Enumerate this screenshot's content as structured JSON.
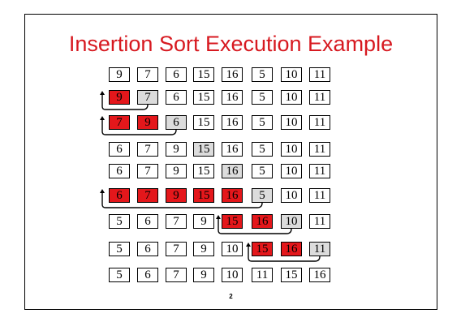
{
  "slide": {
    "title": "Insertion Sort Execution Example",
    "page_number": "2"
  },
  "colors": {
    "title": "#d71920",
    "sorted": "#e4171b",
    "key": "#dcdcdc"
  },
  "rows": [
    {
      "values": [
        9,
        7,
        6,
        15,
        16,
        5,
        10,
        11
      ],
      "sorted_cells": [],
      "key_cell": null,
      "insert_at": null
    },
    {
      "values": [
        9,
        7,
        6,
        15,
        16,
        5,
        10,
        11
      ],
      "sorted_cells": [
        0
      ],
      "key_cell": 1,
      "insert_at": 0
    },
    {
      "values": [
        7,
        9,
        6,
        15,
        16,
        5,
        10,
        11
      ],
      "sorted_cells": [
        0,
        1
      ],
      "key_cell": 2,
      "insert_at": 0
    },
    {
      "values": [
        6,
        7,
        9,
        15,
        16,
        5,
        10,
        11
      ],
      "sorted_cells": [],
      "key_cell": 3,
      "insert_at": null
    },
    {
      "values": [
        6,
        7,
        9,
        15,
        16,
        5,
        10,
        11
      ],
      "sorted_cells": [],
      "key_cell": 4,
      "insert_at": null
    },
    {
      "values": [
        6,
        7,
        9,
        15,
        16,
        5,
        10,
        11
      ],
      "sorted_cells": [
        0,
        1,
        2,
        3,
        4
      ],
      "key_cell": 5,
      "insert_at": 0
    },
    {
      "values": [
        5,
        6,
        7,
        9,
        15,
        16,
        10,
        11
      ],
      "sorted_cells": [
        4,
        5
      ],
      "key_cell": 6,
      "insert_at": 4
    },
    {
      "values": [
        5,
        6,
        7,
        9,
        10,
        15,
        16,
        11
      ],
      "sorted_cells": [
        5,
        6
      ],
      "key_cell": 7,
      "insert_at": 5
    },
    {
      "values": [
        5,
        6,
        7,
        9,
        10,
        11,
        15,
        16
      ],
      "sorted_cells": [],
      "key_cell": null,
      "insert_at": null
    }
  ]
}
